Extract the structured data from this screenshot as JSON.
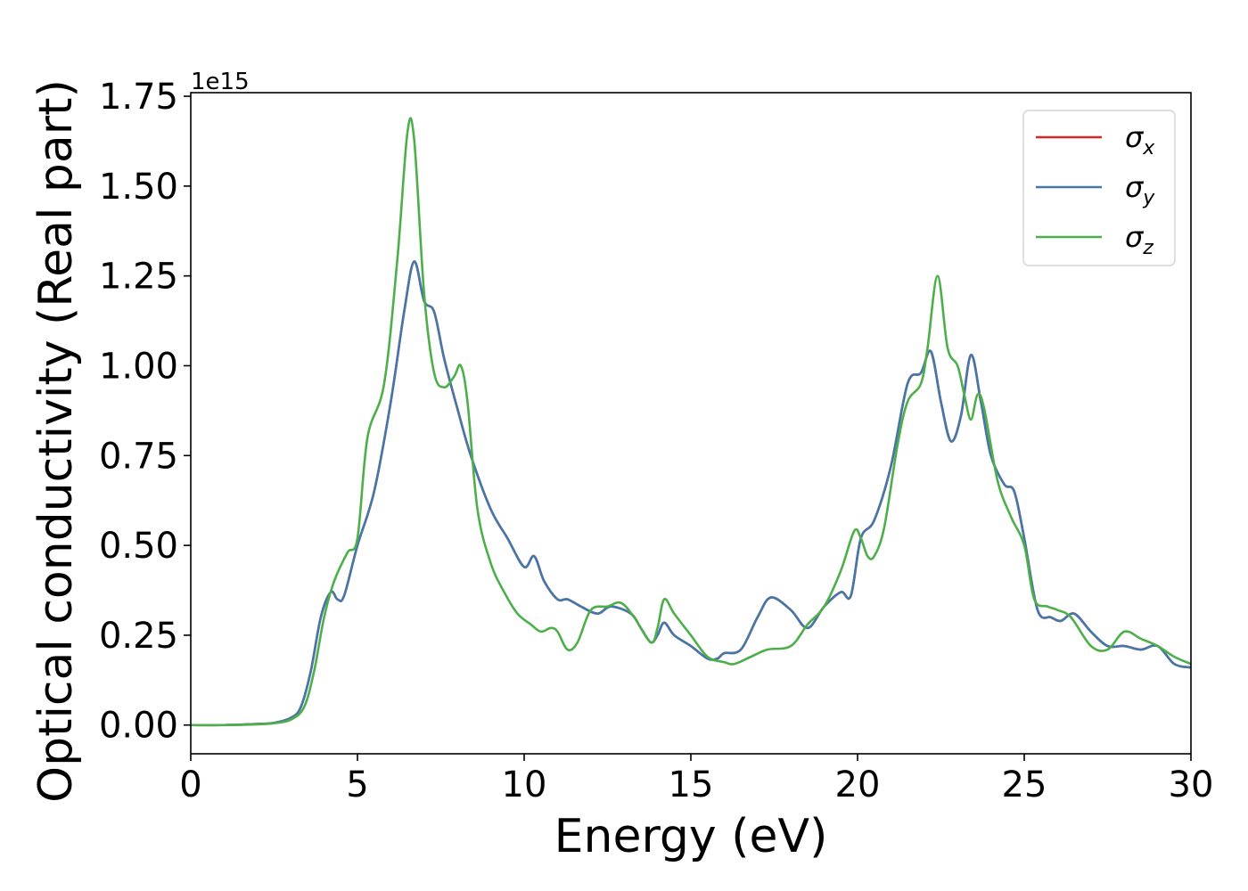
{
  "chart_data": {
    "type": "line",
    "xlabel": "Energy (eV)",
    "ylabel": "Optical conductivity (Real part)",
    "y_offset_label": "1e15",
    "xlim": [
      0,
      30
    ],
    "ylim": [
      -0.08,
      1.76
    ],
    "x_ticks": [
      0,
      5,
      10,
      15,
      20,
      25,
      30
    ],
    "x_tick_labels": [
      "0",
      "5",
      "10",
      "15",
      "20",
      "25",
      "30"
    ],
    "y_ticks": [
      0.0,
      0.25,
      0.5,
      0.75,
      1.0,
      1.25,
      1.5,
      1.75
    ],
    "y_tick_labels": [
      "0.00",
      "0.25",
      "0.50",
      "0.75",
      "1.00",
      "1.25",
      "1.50",
      "1.75"
    ],
    "grid": false,
    "legend_position": "top-right",
    "series": [
      {
        "name_base": "σ",
        "name_sub": "x",
        "color": "#d62728",
        "points": [
          [
            0,
            0
          ],
          [
            1,
            0
          ],
          [
            2,
            0.003
          ],
          [
            2.5,
            0.006
          ],
          [
            3,
            0.02
          ],
          [
            3.3,
            0.05
          ],
          [
            3.6,
            0.15
          ],
          [
            3.9,
            0.3
          ],
          [
            4.2,
            0.37
          ],
          [
            4.4,
            0.35
          ],
          [
            4.6,
            0.36
          ],
          [
            5,
            0.5
          ],
          [
            5.5,
            0.65
          ],
          [
            6,
            0.9
          ],
          [
            6.4,
            1.15
          ],
          [
            6.7,
            1.29
          ],
          [
            7,
            1.18
          ],
          [
            7.3,
            1.15
          ],
          [
            7.6,
            1.02
          ],
          [
            8,
            0.88
          ],
          [
            8.4,
            0.75
          ],
          [
            9,
            0.6
          ],
          [
            9.5,
            0.52
          ],
          [
            10,
            0.44
          ],
          [
            10.3,
            0.47
          ],
          [
            10.6,
            0.4
          ],
          [
            11,
            0.35
          ],
          [
            11.3,
            0.35
          ],
          [
            11.7,
            0.33
          ],
          [
            12.2,
            0.31
          ],
          [
            12.6,
            0.33
          ],
          [
            13.2,
            0.31
          ],
          [
            13.5,
            0.27
          ],
          [
            13.8,
            0.23
          ],
          [
            14,
            0.25
          ],
          [
            14.2,
            0.285
          ],
          [
            14.5,
            0.25
          ],
          [
            15,
            0.22
          ],
          [
            15.5,
            0.185
          ],
          [
            15.8,
            0.185
          ],
          [
            16,
            0.2
          ],
          [
            16.5,
            0.21
          ],
          [
            17,
            0.3
          ],
          [
            17.4,
            0.355
          ],
          [
            18,
            0.32
          ],
          [
            18.5,
            0.27
          ],
          [
            19,
            0.33
          ],
          [
            19.5,
            0.37
          ],
          [
            19.8,
            0.36
          ],
          [
            20.1,
            0.52
          ],
          [
            20.5,
            0.57
          ],
          [
            21,
            0.72
          ],
          [
            21.5,
            0.95
          ],
          [
            21.9,
            0.98
          ],
          [
            22.2,
            1.04
          ],
          [
            22.5,
            0.9
          ],
          [
            22.8,
            0.79
          ],
          [
            23.1,
            0.86
          ],
          [
            23.4,
            1.03
          ],
          [
            23.7,
            0.9
          ],
          [
            24,
            0.75
          ],
          [
            24.4,
            0.67
          ],
          [
            24.7,
            0.65
          ],
          [
            25,
            0.52
          ],
          [
            25.4,
            0.32
          ],
          [
            25.8,
            0.3
          ],
          [
            26.1,
            0.29
          ],
          [
            26.5,
            0.31
          ],
          [
            27,
            0.26
          ],
          [
            27.5,
            0.22
          ],
          [
            28,
            0.22
          ],
          [
            28.5,
            0.21
          ],
          [
            29,
            0.22
          ],
          [
            29.5,
            0.17
          ],
          [
            30,
            0.16
          ]
        ]
      },
      {
        "name_base": "σ",
        "name_sub": "y",
        "color": "#4477aa",
        "points": [
          [
            0,
            0
          ],
          [
            1,
            0
          ],
          [
            2,
            0.003
          ],
          [
            2.5,
            0.006
          ],
          [
            3,
            0.02
          ],
          [
            3.3,
            0.05
          ],
          [
            3.6,
            0.15
          ],
          [
            3.9,
            0.3
          ],
          [
            4.2,
            0.37
          ],
          [
            4.4,
            0.35
          ],
          [
            4.6,
            0.36
          ],
          [
            5,
            0.5
          ],
          [
            5.5,
            0.65
          ],
          [
            6,
            0.9
          ],
          [
            6.4,
            1.15
          ],
          [
            6.7,
            1.29
          ],
          [
            7,
            1.18
          ],
          [
            7.3,
            1.15
          ],
          [
            7.6,
            1.02
          ],
          [
            8,
            0.88
          ],
          [
            8.4,
            0.75
          ],
          [
            9,
            0.6
          ],
          [
            9.5,
            0.52
          ],
          [
            10,
            0.44
          ],
          [
            10.3,
            0.47
          ],
          [
            10.6,
            0.4
          ],
          [
            11,
            0.35
          ],
          [
            11.3,
            0.35
          ],
          [
            11.7,
            0.33
          ],
          [
            12.2,
            0.31
          ],
          [
            12.6,
            0.33
          ],
          [
            13.2,
            0.31
          ],
          [
            13.5,
            0.27
          ],
          [
            13.8,
            0.23
          ],
          [
            14,
            0.25
          ],
          [
            14.2,
            0.285
          ],
          [
            14.5,
            0.25
          ],
          [
            15,
            0.22
          ],
          [
            15.5,
            0.185
          ],
          [
            15.8,
            0.185
          ],
          [
            16,
            0.2
          ],
          [
            16.5,
            0.21
          ],
          [
            17,
            0.3
          ],
          [
            17.4,
            0.355
          ],
          [
            18,
            0.32
          ],
          [
            18.5,
            0.27
          ],
          [
            19,
            0.33
          ],
          [
            19.5,
            0.37
          ],
          [
            19.8,
            0.36
          ],
          [
            20.1,
            0.52
          ],
          [
            20.5,
            0.57
          ],
          [
            21,
            0.72
          ],
          [
            21.5,
            0.95
          ],
          [
            21.9,
            0.98
          ],
          [
            22.2,
            1.04
          ],
          [
            22.5,
            0.9
          ],
          [
            22.8,
            0.79
          ],
          [
            23.1,
            0.86
          ],
          [
            23.4,
            1.03
          ],
          [
            23.7,
            0.9
          ],
          [
            24,
            0.75
          ],
          [
            24.4,
            0.67
          ],
          [
            24.7,
            0.65
          ],
          [
            25,
            0.52
          ],
          [
            25.4,
            0.32
          ],
          [
            25.8,
            0.3
          ],
          [
            26.1,
            0.29
          ],
          [
            26.5,
            0.31
          ],
          [
            27,
            0.26
          ],
          [
            27.5,
            0.22
          ],
          [
            28,
            0.22
          ],
          [
            28.5,
            0.21
          ],
          [
            29,
            0.22
          ],
          [
            29.5,
            0.17
          ],
          [
            30,
            0.16
          ]
        ]
      },
      {
        "name_base": "σ",
        "name_sub": "z",
        "color": "#4daf4a",
        "points": [
          [
            0,
            0
          ],
          [
            1,
            0
          ],
          [
            2,
            0.002
          ],
          [
            2.5,
            0.005
          ],
          [
            3,
            0.015
          ],
          [
            3.4,
            0.05
          ],
          [
            3.7,
            0.15
          ],
          [
            4,
            0.3
          ],
          [
            4.3,
            0.4
          ],
          [
            4.7,
            0.48
          ],
          [
            5,
            0.52
          ],
          [
            5.3,
            0.8
          ],
          [
            5.8,
            0.95
          ],
          [
            6.2,
            1.3
          ],
          [
            6.5,
            1.65
          ],
          [
            6.7,
            1.63
          ],
          [
            7,
            1.2
          ],
          [
            7.3,
            0.98
          ],
          [
            7.6,
            0.94
          ],
          [
            7.9,
            0.97
          ],
          [
            8.1,
            1.0
          ],
          [
            8.3,
            0.9
          ],
          [
            8.6,
            0.6
          ],
          [
            9,
            0.45
          ],
          [
            9.4,
            0.37
          ],
          [
            9.8,
            0.31
          ],
          [
            10.2,
            0.28
          ],
          [
            10.5,
            0.26
          ],
          [
            10.8,
            0.27
          ],
          [
            11,
            0.26
          ],
          [
            11.3,
            0.21
          ],
          [
            11.6,
            0.23
          ],
          [
            12,
            0.32
          ],
          [
            12.5,
            0.33
          ],
          [
            12.9,
            0.34
          ],
          [
            13.3,
            0.3
          ],
          [
            13.8,
            0.23
          ],
          [
            14,
            0.27
          ],
          [
            14.2,
            0.35
          ],
          [
            14.5,
            0.31
          ],
          [
            15,
            0.25
          ],
          [
            15.5,
            0.19
          ],
          [
            16,
            0.175
          ],
          [
            16.3,
            0.17
          ],
          [
            16.8,
            0.19
          ],
          [
            17.3,
            0.21
          ],
          [
            18,
            0.22
          ],
          [
            18.5,
            0.28
          ],
          [
            19,
            0.33
          ],
          [
            19.5,
            0.43
          ],
          [
            19.9,
            0.54
          ],
          [
            20.1,
            0.52
          ],
          [
            20.3,
            0.47
          ],
          [
            20.5,
            0.47
          ],
          [
            20.8,
            0.55
          ],
          [
            21.2,
            0.78
          ],
          [
            21.5,
            0.9
          ],
          [
            21.9,
            0.95
          ],
          [
            22.1,
            1.05
          ],
          [
            22.4,
            1.25
          ],
          [
            22.7,
            1.05
          ],
          [
            23,
            1.0
          ],
          [
            23.2,
            0.92
          ],
          [
            23.4,
            0.85
          ],
          [
            23.6,
            0.92
          ],
          [
            23.8,
            0.88
          ],
          [
            24.2,
            0.68
          ],
          [
            24.6,
            0.58
          ],
          [
            25,
            0.5
          ],
          [
            25.3,
            0.35
          ],
          [
            25.7,
            0.33
          ],
          [
            26,
            0.32
          ],
          [
            26.4,
            0.3
          ],
          [
            27,
            0.22
          ],
          [
            27.5,
            0.21
          ],
          [
            28,
            0.26
          ],
          [
            28.5,
            0.24
          ],
          [
            29,
            0.22
          ],
          [
            29.5,
            0.19
          ],
          [
            30,
            0.17
          ]
        ]
      }
    ]
  }
}
